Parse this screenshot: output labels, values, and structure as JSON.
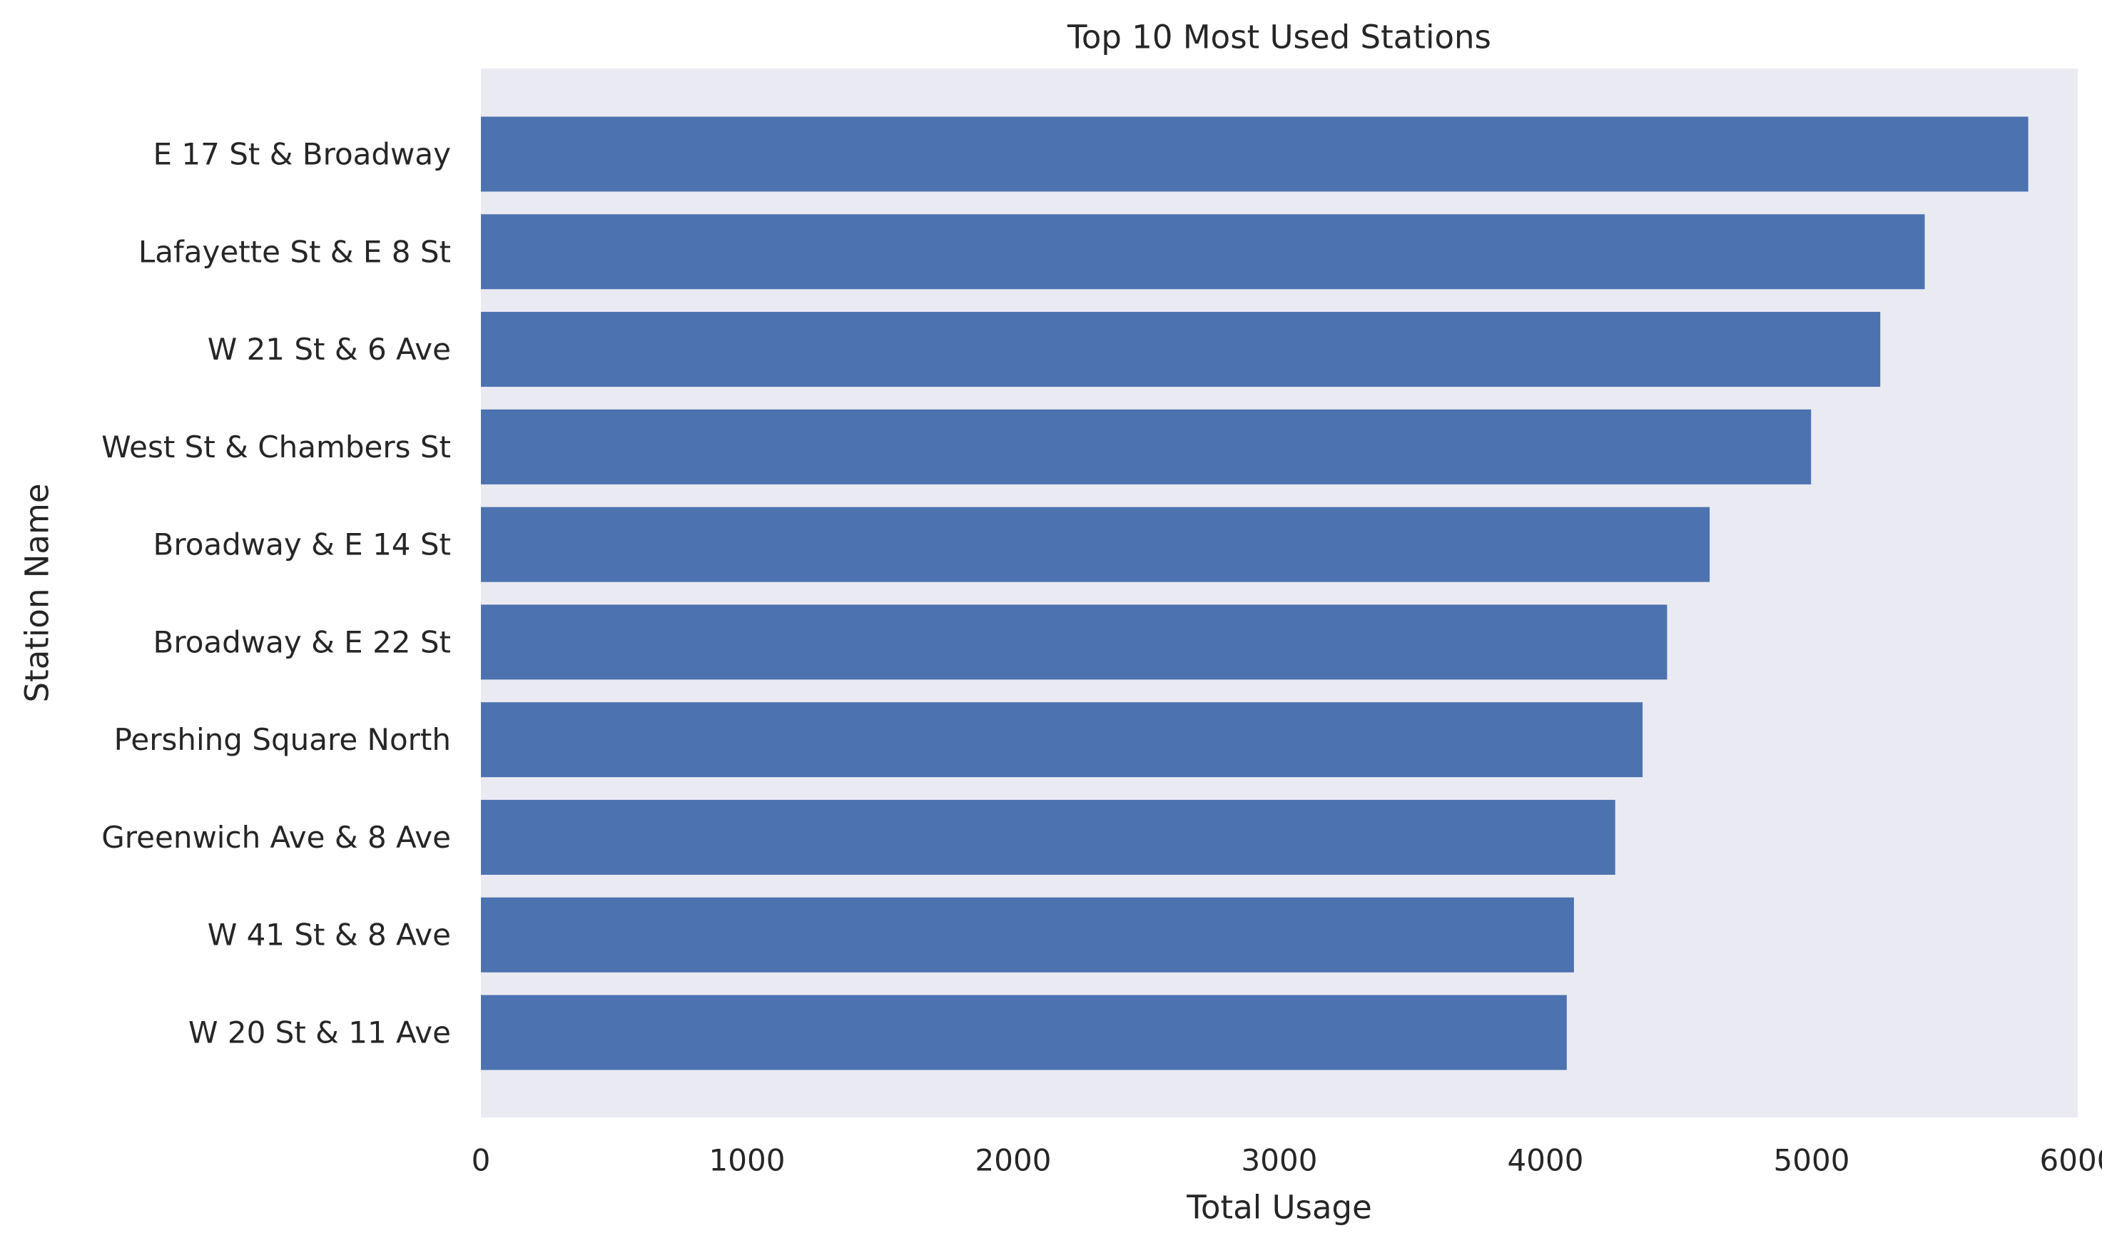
{
  "chart_data": {
    "type": "bar",
    "orientation": "horizontal",
    "title": "Top 10 Most Used Stations",
    "xlabel": "Total Usage",
    "ylabel": "Station Name",
    "categories": [
      "E 17 St & Broadway",
      "Lafayette St & E 8 St",
      "W 21 St & 6 Ave",
      "West St & Chambers St",
      "Broadway & E 14 St",
      "Broadway & E 22 St",
      "Pershing Square North",
      "Greenwich Ave & 8 Ave",
      "W 41 St & 8 Ave",
      "W 20 St & 11 Ave"
    ],
    "values": [
      5814,
      5425,
      5258,
      4998,
      4617,
      4457,
      4365,
      4262,
      4107,
      4080
    ],
    "xlim": [
      0,
      6000
    ],
    "xticks": [
      0,
      1000,
      2000,
      3000,
      4000,
      5000,
      6000
    ],
    "grid": false,
    "legend": "none",
    "colors": {
      "bar": "#4c72b0",
      "plot_background": "#eaeaf2",
      "figure_background": "#ffffff",
      "text": "#262626"
    }
  }
}
